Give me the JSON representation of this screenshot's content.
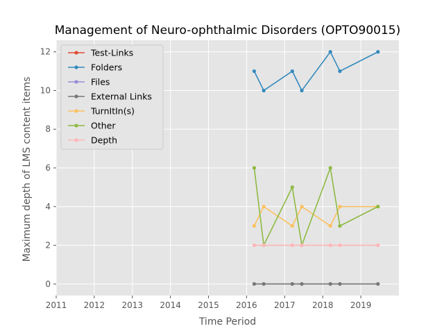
{
  "chart_data": {
    "type": "line",
    "title": "Management of Neuro-ophthalmic Disorders (OPTO90015)",
    "xlabel": "Time Period",
    "ylabel": "Maximum depth of LMS content items",
    "xlim": [
      2011.0,
      2020.0
    ],
    "ylim": [
      -0.6,
      12.6
    ],
    "xticks": [
      2011,
      2012,
      2013,
      2014,
      2015,
      2016,
      2017,
      2018,
      2019
    ],
    "yticks": [
      0,
      2,
      4,
      6,
      8,
      10,
      12
    ],
    "grid": true,
    "legend_position": "top-left",
    "x": [
      2016.2,
      2016.45,
      2017.2,
      2017.45,
      2018.2,
      2018.45,
      2019.45
    ],
    "series": [
      {
        "name": "Test-Links",
        "color": "#e24a33",
        "values": [
          null,
          null,
          null,
          null,
          null,
          null,
          null
        ]
      },
      {
        "name": "Folders",
        "color": "#348abd",
        "values": [
          11,
          10,
          11,
          10,
          12,
          11,
          12
        ]
      },
      {
        "name": "Files",
        "color": "#988ed5",
        "values": [
          null,
          null,
          null,
          null,
          null,
          null,
          null
        ]
      },
      {
        "name": "External Links",
        "color": "#777777",
        "values": [
          0,
          0,
          0,
          0,
          0,
          0,
          0
        ]
      },
      {
        "name": "TurnItIn(s)",
        "color": "#fbc15e",
        "values": [
          3,
          4,
          3,
          4,
          3,
          4,
          4
        ]
      },
      {
        "name": "Other",
        "color": "#8eba42",
        "values": [
          6,
          2,
          5,
          2,
          6,
          3,
          4
        ]
      },
      {
        "name": "Depth",
        "color": "#ffb5b8",
        "values": [
          2,
          2,
          2,
          2,
          2,
          2,
          2
        ]
      }
    ]
  }
}
